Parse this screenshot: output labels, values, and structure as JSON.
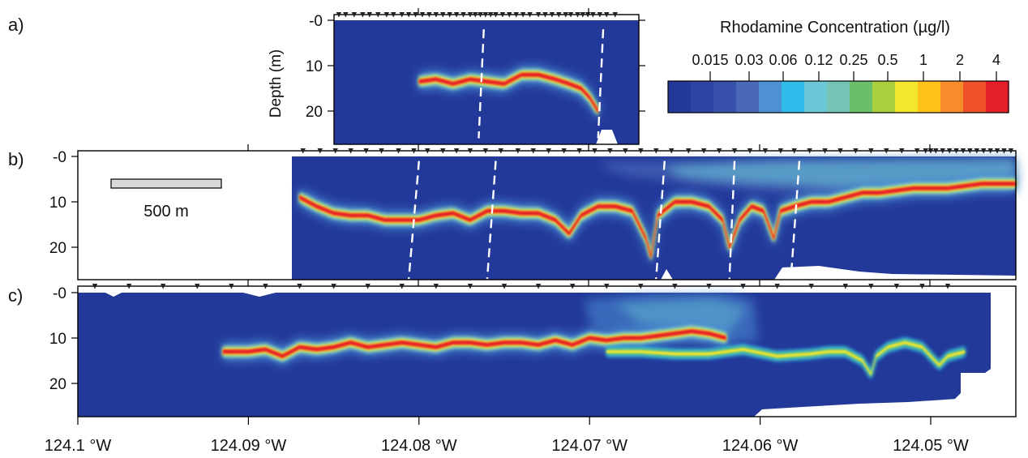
{
  "chart_data": [
    {
      "panel": "a)",
      "type": "heatmap",
      "ylabel": "Depth (m)",
      "y_ticks": [
        "-0",
        "10",
        "20"
      ],
      "ylim": [
        -1,
        26
      ],
      "xlim": [
        124.0845,
        124.0685
      ],
      "markers": [
        124.0847,
        124.0843,
        124.0838,
        124.0833,
        124.0829,
        124.0824,
        124.0819,
        124.0815,
        124.081,
        124.0806,
        124.0802,
        124.0798,
        124.0794,
        124.079,
        124.0786,
        124.0782,
        124.0778,
        124.0774,
        124.077,
        124.0767,
        124.0764,
        124.0761,
        124.0758,
        124.0755,
        124.0751,
        124.0747,
        124.0743,
        124.0739,
        124.0735,
        124.073,
        124.0726,
        124.0722,
        124.0718,
        124.0714,
        124.0711,
        124.0707,
        124.0704,
        124.0701,
        124.0698,
        124.0694,
        124.069,
        124.0685
      ],
      "plume": [
        [
          124.08,
          13.5
        ],
        [
          124.079,
          13
        ],
        [
          124.078,
          14
        ],
        [
          124.077,
          13
        ],
        [
          124.076,
          13.5
        ],
        [
          124.075,
          14
        ],
        [
          124.074,
          12
        ],
        [
          124.073,
          12
        ],
        [
          124.072,
          13
        ],
        [
          124.0712,
          14
        ],
        [
          124.0705,
          15
        ],
        [
          124.07,
          17
        ],
        [
          124.0695,
          20
        ]
      ],
      "dashed_lines": [
        [
          [
            124.0762,
            2
          ],
          [
            124.0765,
            26
          ]
        ],
        [
          [
            124.0692,
            2
          ],
          [
            124.0695,
            26
          ]
        ]
      ]
    },
    {
      "panel": "b)",
      "type": "heatmap",
      "y_ticks": [
        "-0",
        "10",
        "20"
      ],
      "ylim": [
        -1,
        27
      ],
      "scale_bar": "500 m",
      "markers": [
        124.0876,
        124.0868,
        124.0858,
        124.0849,
        124.084,
        124.0831,
        124.0822,
        124.0812,
        124.0803,
        124.0795,
        124.0786,
        124.0778,
        124.077,
        124.0761,
        124.0752,
        124.0742,
        124.0733,
        124.0724,
        124.0715,
        124.0706,
        124.0697,
        124.0688,
        124.0679,
        124.067,
        124.0661,
        124.0652,
        124.0642,
        124.0633,
        124.0624,
        124.0615,
        124.0606,
        124.0597,
        124.0588,
        124.058,
        124.0571,
        124.0562,
        124.0553,
        124.0544,
        124.0535,
        124.0526,
        124.0517,
        124.0508,
        124.0503,
        124.05,
        124.0497,
        124.0493,
        124.0489,
        124.0485,
        124.0481,
        124.0477,
        124.0473,
        124.0469,
        124.0465,
        124.0461,
        124.0457,
        124.0453,
        124.0449
      ],
      "plume": [
        [
          124.087,
          9
        ],
        [
          124.086,
          11
        ],
        [
          124.085,
          12.5
        ],
        [
          124.084,
          13
        ],
        [
          124.083,
          13
        ],
        [
          124.082,
          14
        ],
        [
          124.081,
          14
        ],
        [
          124.08,
          14
        ],
        [
          124.079,
          13
        ],
        [
          124.078,
          12.5
        ],
        [
          124.077,
          14
        ],
        [
          124.076,
          12
        ],
        [
          124.075,
          12
        ],
        [
          124.074,
          12.5
        ],
        [
          124.073,
          12.5
        ],
        [
          124.072,
          14
        ],
        [
          124.0712,
          17
        ],
        [
          124.0705,
          13
        ],
        [
          124.0695,
          11
        ],
        [
          124.0685,
          11
        ],
        [
          124.0675,
          12
        ],
        [
          124.0667,
          18
        ],
        [
          124.0664,
          22
        ],
        [
          124.066,
          13
        ],
        [
          124.065,
          10
        ],
        [
          124.064,
          10
        ],
        [
          124.063,
          11
        ],
        [
          124.0622,
          14
        ],
        [
          124.0618,
          20
        ],
        [
          124.0612,
          14
        ],
        [
          124.0605,
          11
        ],
        [
          124.0598,
          12
        ],
        [
          124.0592,
          18
        ],
        [
          124.0588,
          12
        ],
        [
          124.058,
          11
        ],
        [
          124.057,
          10
        ],
        [
          124.056,
          10
        ],
        [
          124.055,
          9
        ],
        [
          124.054,
          8
        ],
        [
          124.053,
          8
        ],
        [
          124.052,
          7.5
        ],
        [
          124.051,
          7
        ],
        [
          124.05,
          7
        ],
        [
          124.049,
          7
        ],
        [
          124.048,
          6.5
        ],
        [
          124.047,
          6
        ],
        [
          124.046,
          6
        ],
        [
          124.045,
          6
        ]
      ],
      "dashed_lines": [
        [
          [
            124.08,
            1
          ],
          [
            124.0806,
            27
          ]
        ],
        [
          [
            124.0755,
            1
          ],
          [
            124.076,
            27
          ]
        ],
        [
          [
            124.0656,
            1
          ],
          [
            124.0661,
            27
          ]
        ],
        [
          [
            124.0615,
            1
          ],
          [
            124.0618,
            27
          ]
        ],
        [
          [
            124.0577,
            1
          ],
          [
            124.0582,
            27
          ]
        ]
      ]
    },
    {
      "panel": "c)",
      "type": "heatmap",
      "xlabel_ticks": [
        "124.1 °W",
        "124.09 °W",
        "124.08 °W",
        "124.07 °W",
        "124.06 °W",
        "124.05 °W"
      ],
      "xlim": [
        124.1,
        124.0445
      ],
      "y_ticks": [
        "-0",
        "10",
        "20"
      ],
      "ylim": [
        -1,
        27
      ],
      "markers": [
        124.099,
        124.097,
        124.095,
        124.093,
        124.091,
        124.089,
        124.087,
        124.085,
        124.083,
        124.081,
        124.079,
        124.077,
        124.075,
        124.073,
        124.071,
        124.069,
        124.067,
        124.065,
        124.063,
        124.061,
        124.059,
        124.057,
        124.055,
        124.0535,
        124.052,
        124.0505,
        124.049
      ],
      "plume": [
        [
          124.0915,
          13
        ],
        [
          124.09,
          13
        ],
        [
          124.089,
          12.5
        ],
        [
          124.088,
          14
        ],
        [
          124.087,
          12
        ],
        [
          124.086,
          12.5
        ],
        [
          124.085,
          12
        ],
        [
          124.084,
          11
        ],
        [
          124.083,
          12
        ],
        [
          124.082,
          11.5
        ],
        [
          124.081,
          11
        ],
        [
          124.08,
          11.5
        ],
        [
          124.079,
          12
        ],
        [
          124.078,
          11
        ],
        [
          124.077,
          11
        ],
        [
          124.076,
          11.5
        ],
        [
          124.075,
          11
        ],
        [
          124.074,
          11
        ],
        [
          124.073,
          11.5
        ],
        [
          124.072,
          10.5
        ],
        [
          124.071,
          11.5
        ],
        [
          124.07,
          10
        ],
        [
          124.069,
          10.5
        ],
        [
          124.068,
          10
        ],
        [
          124.067,
          10
        ],
        [
          124.066,
          9.5
        ],
        [
          124.065,
          9
        ],
        [
          124.064,
          8.5
        ],
        [
          124.063,
          9
        ],
        [
          124.062,
          10
        ]
      ],
      "plume2": [
        [
          124.069,
          13
        ],
        [
          124.067,
          13
        ],
        [
          124.065,
          13.5
        ],
        [
          124.063,
          13.5
        ],
        [
          124.061,
          12.5
        ],
        [
          124.059,
          14
        ],
        [
          124.057,
          13.5
        ],
        [
          124.056,
          13
        ],
        [
          124.055,
          13
        ],
        [
          124.054,
          15
        ],
        [
          124.0535,
          18
        ],
        [
          124.0532,
          14
        ],
        [
          124.0525,
          12
        ],
        [
          124.0515,
          11
        ],
        [
          124.0505,
          12
        ],
        [
          124.05,
          14
        ],
        [
          124.0495,
          16
        ],
        [
          124.049,
          14
        ],
        [
          124.048,
          13
        ]
      ]
    },
    {
      "type": "colorbar",
      "title": "Rhodamine Concentration (µg/l)",
      "tick_labels": [
        "0.015",
        "0.03",
        "0.06",
        "0.12",
        "0.25",
        "0.5",
        "1",
        "2",
        "4"
      ],
      "colors": [
        "#22399a",
        "#2d44a4",
        "#3852ac",
        "#4a67b8",
        "#4d90d4",
        "#2fbceb",
        "#6cc8d8",
        "#74c3b4",
        "#6abf6a",
        "#a8cf3c",
        "#f2e62f",
        "#ffc21a",
        "#f78c2b",
        "#ee5028",
        "#e51f27"
      ]
    }
  ],
  "panel_labels": [
    "a)",
    "b)",
    "c)"
  ]
}
